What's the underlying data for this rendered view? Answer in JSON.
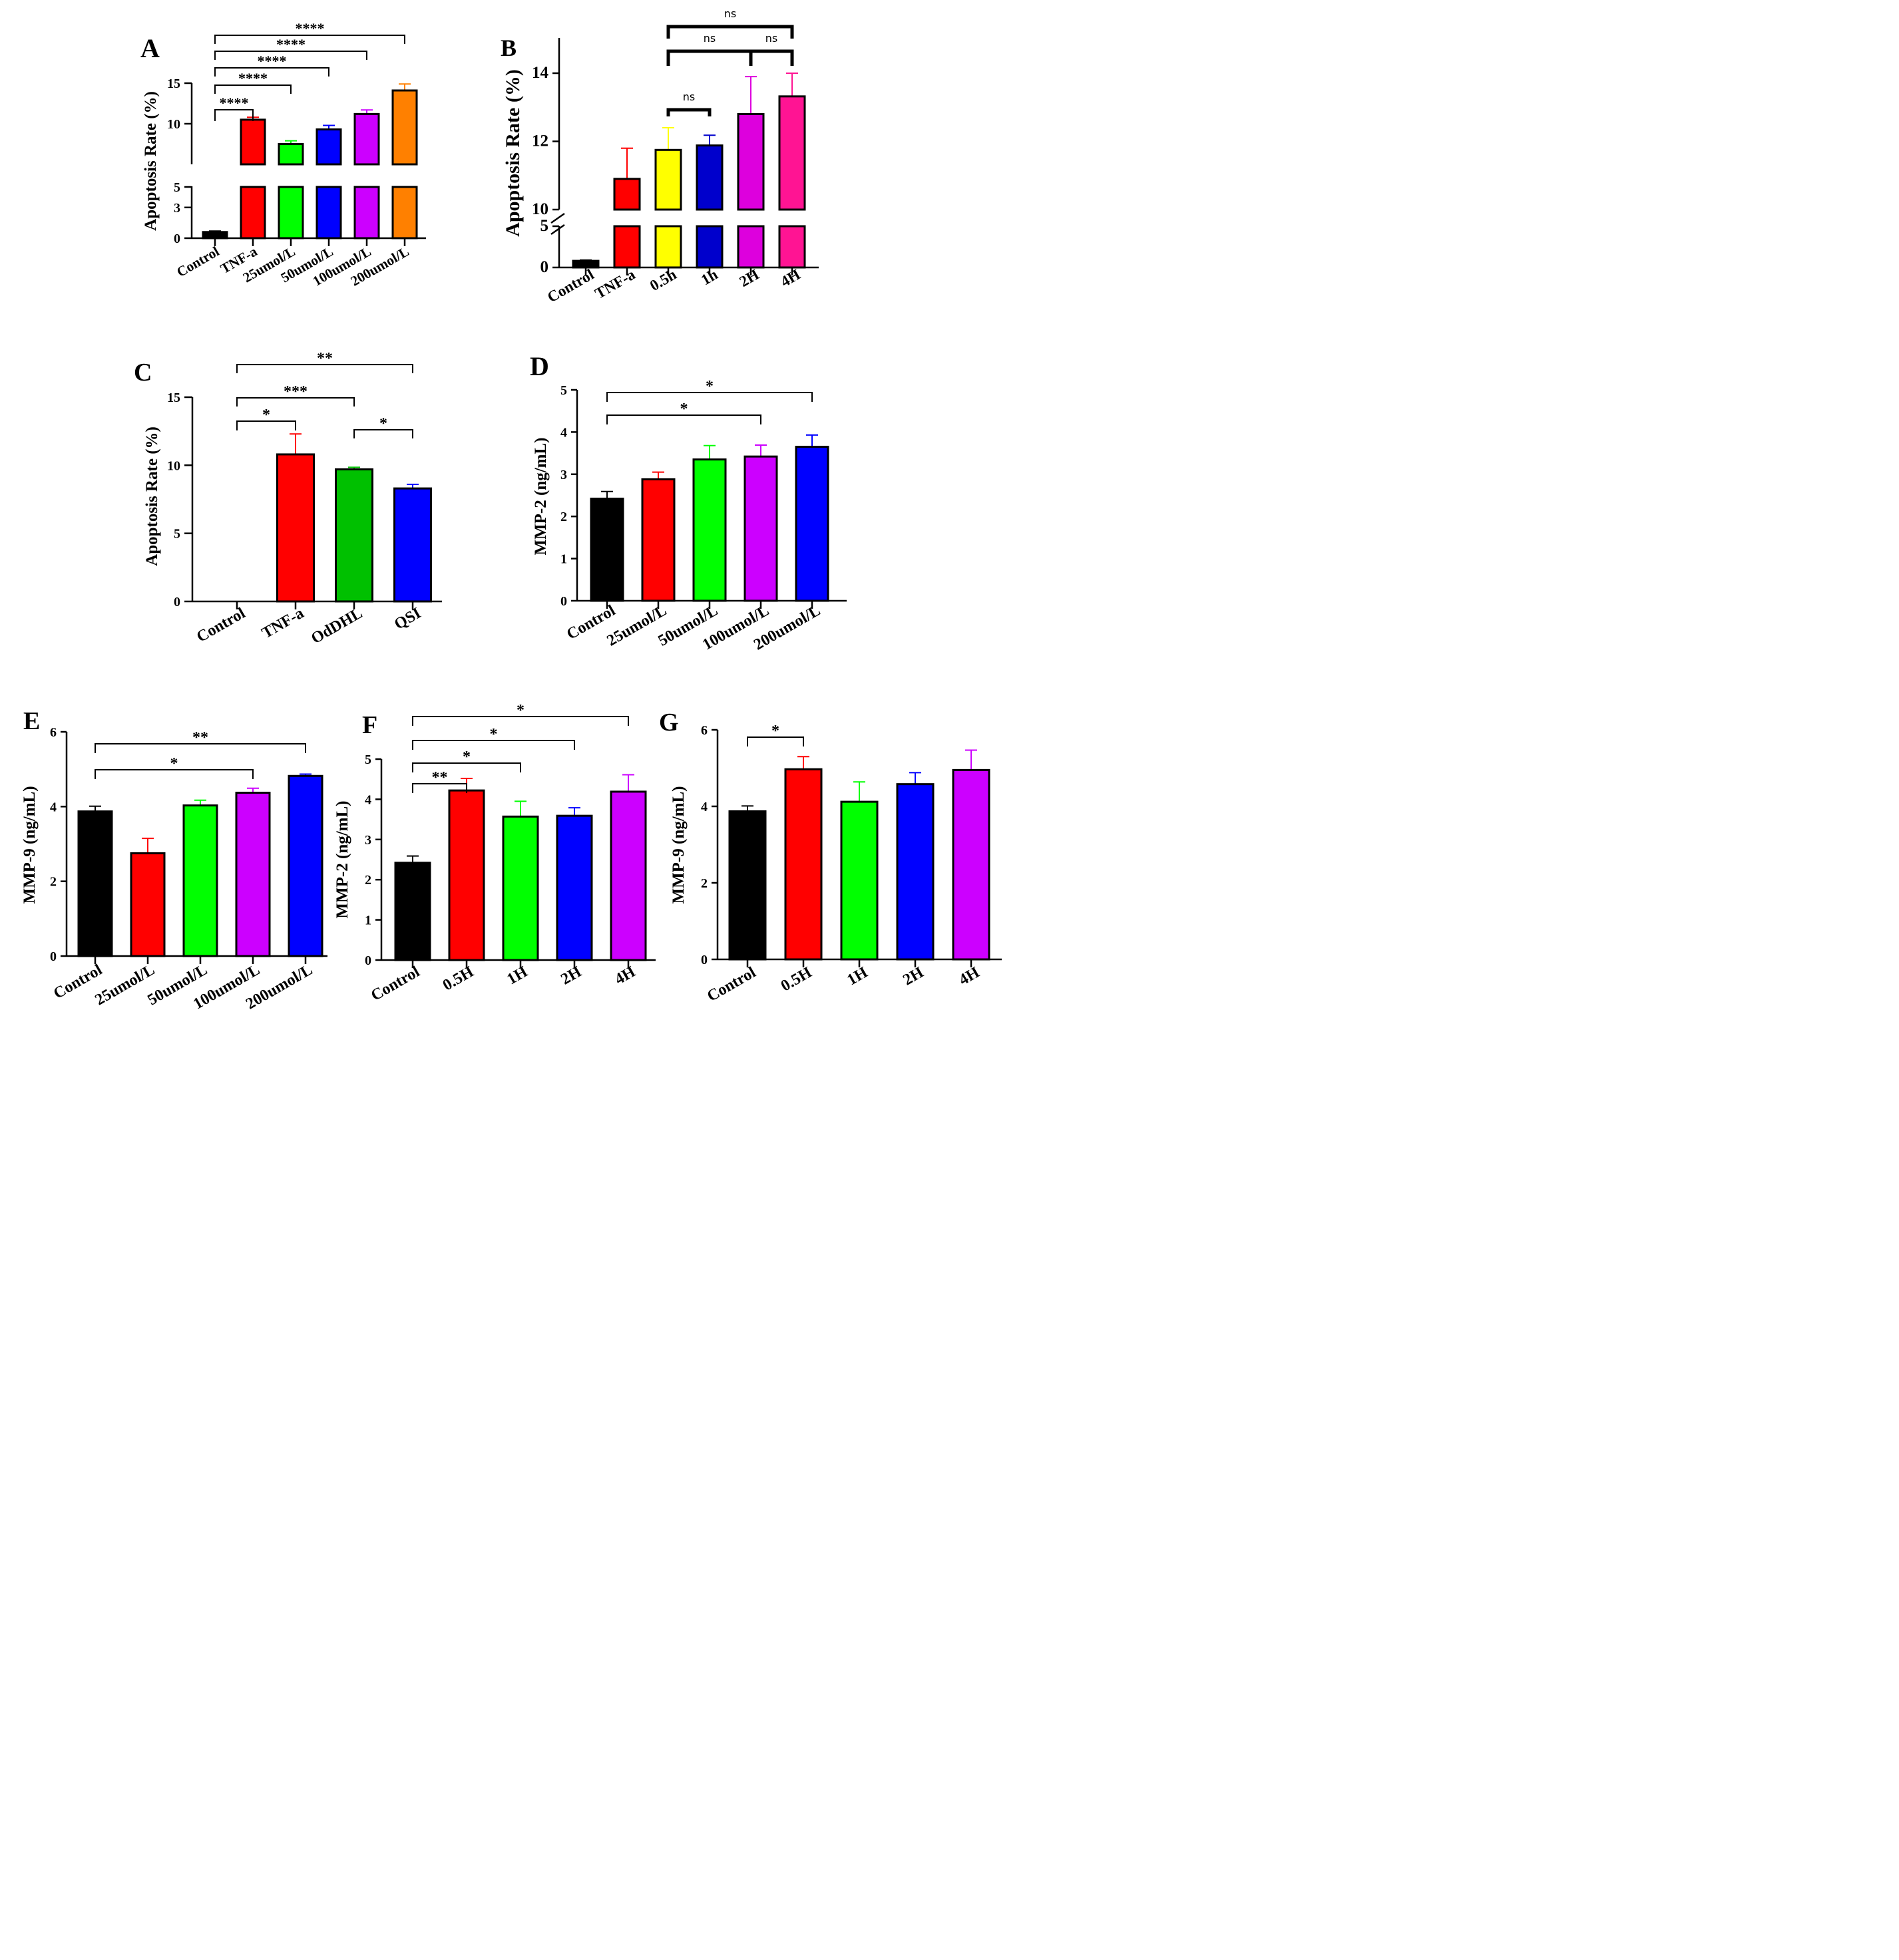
{
  "chart_data": [
    {
      "panel": "A",
      "type": "bar",
      "ylabel": "Apoptosis Rate (%)",
      "categories": [
        "Control",
        "TNF-a",
        "25umol/L",
        "50umol/L",
        "100umol/L",
        "200umol/L"
      ],
      "values": [
        0.6,
        10.5,
        7.5,
        9.3,
        11.2,
        14.1
      ],
      "errors": [
        0.1,
        0.3,
        0.4,
        0.5,
        0.5,
        0.8
      ],
      "colors": [
        "#000000",
        "#ff0000",
        "#00ff00",
        "#0000ff",
        "#cc00ff",
        "#ff8000"
      ],
      "yticks": [
        0,
        3,
        5,
        10,
        15
      ],
      "axis_break": [
        5,
        5
      ],
      "comparisons": [
        {
          "from": 0,
          "to": 1,
          "label": "****"
        },
        {
          "from": 0,
          "to": 2,
          "label": "****"
        },
        {
          "from": 0,
          "to": 3,
          "label": "****"
        },
        {
          "from": 0,
          "to": 4,
          "label": "****"
        },
        {
          "from": 0,
          "to": 5,
          "label": "****"
        }
      ]
    },
    {
      "panel": "B",
      "type": "bar",
      "ylabel": "Apoptosis Rate (%)",
      "categories": [
        "Control",
        "TNF-a",
        "0.5h",
        "1h",
        "2H",
        "4H"
      ],
      "values": [
        0.8,
        10.9,
        11.75,
        11.88,
        12.8,
        13.32
      ],
      "errors": [
        0.1,
        0.9,
        0.65,
        0.3,
        1.1,
        0.88
      ],
      "colors": [
        "#000000",
        "#ff0000",
        "#ffff00",
        "#0000cc",
        "#dd00dd",
        "#ff1493"
      ],
      "yticks": [
        0,
        5,
        10,
        12,
        14
      ],
      "axis_break": [
        5,
        10
      ],
      "comparisons": [
        {
          "from": 2,
          "to": 3,
          "label": "ns"
        },
        {
          "from": 2,
          "to": 4,
          "label": "ns"
        },
        {
          "from": 4,
          "to": 5,
          "label": "ns"
        },
        {
          "from": 2,
          "to": 5,
          "label": "ns"
        }
      ]
    },
    {
      "panel": "C",
      "type": "bar",
      "ylabel": "Apoptosis Rate (%)",
      "categories": [
        "Control",
        "TNF-a",
        "OdDHL",
        "QSI"
      ],
      "values": [
        0,
        10.8,
        9.7,
        8.3
      ],
      "errors": [
        0,
        1.5,
        0.15,
        0.3
      ],
      "colors": [
        "#000000",
        "#ff0000",
        "#00c000",
        "#0000ff"
      ],
      "yticks": [
        0,
        5,
        10,
        15
      ],
      "ylim": [
        0,
        15
      ],
      "comparisons": [
        {
          "from": 0,
          "to": 1,
          "label": "*"
        },
        {
          "from": 0,
          "to": 2,
          "label": "***"
        },
        {
          "from": 2,
          "to": 3,
          "label": "*"
        },
        {
          "from": 0,
          "to": 3,
          "label": "**"
        }
      ]
    },
    {
      "panel": "D",
      "type": "bar",
      "ylabel": "MMP-2 (ng/mL)",
      "categories": [
        "Control",
        "25umol/L",
        "50umol/L",
        "100umol/L",
        "200umol/L"
      ],
      "values": [
        2.42,
        2.88,
        3.35,
        3.42,
        3.65
      ],
      "errors": [
        0.17,
        0.17,
        0.33,
        0.27,
        0.28
      ],
      "colors": [
        "#000000",
        "#ff0000",
        "#00ff00",
        "#cc00ff",
        "#0000ff"
      ],
      "yticks": [
        0,
        1,
        2,
        3,
        4,
        5
      ],
      "ylim": [
        0,
        5
      ],
      "comparisons": [
        {
          "from": 0,
          "to": 3,
          "label": "*"
        },
        {
          "from": 0,
          "to": 4,
          "label": "*"
        }
      ]
    },
    {
      "panel": "E",
      "type": "bar",
      "ylabel": "MMP-9 (ng/mL)",
      "categories": [
        "Control",
        "25umol/L",
        "50umol/L",
        "100umol/L",
        "200umol/L"
      ],
      "values": [
        3.87,
        2.75,
        4.03,
        4.37,
        4.82
      ],
      "errors": [
        0.14,
        0.4,
        0.14,
        0.12,
        0.05
      ],
      "colors": [
        "#000000",
        "#ff0000",
        "#00ff00",
        "#cc00ff",
        "#0000ff"
      ],
      "yticks": [
        0,
        2,
        4,
        6
      ],
      "ylim": [
        0,
        6
      ],
      "comparisons": [
        {
          "from": 0,
          "to": 3,
          "label": "*"
        },
        {
          "from": 0,
          "to": 4,
          "label": "**"
        }
      ]
    },
    {
      "panel": "F",
      "type": "bar",
      "ylabel": "MMP-2 (ng/mL)",
      "categories": [
        "Control",
        "0.5H",
        "1H",
        "2H",
        "4H"
      ],
      "values": [
        2.42,
        4.22,
        3.57,
        3.59,
        4.19
      ],
      "errors": [
        0.17,
        0.3,
        0.38,
        0.2,
        0.42
      ],
      "colors": [
        "#000000",
        "#ff0000",
        "#00ff00",
        "#0000ff",
        "#cc00ff"
      ],
      "yticks": [
        0,
        1,
        2,
        3,
        4,
        5
      ],
      "ylim": [
        0,
        5
      ],
      "comparisons": [
        {
          "from": 0,
          "to": 1,
          "label": "**"
        },
        {
          "from": 0,
          "to": 2,
          "label": "*"
        },
        {
          "from": 0,
          "to": 3,
          "label": "*"
        },
        {
          "from": 0,
          "to": 4,
          "label": "*"
        }
      ]
    },
    {
      "panel": "G",
      "type": "bar",
      "ylabel": "MMP-9 (ng/mL)",
      "categories": [
        "Control",
        "0.5H",
        "1H",
        "2H",
        "4H"
      ],
      "values": [
        3.87,
        4.97,
        4.12,
        4.58,
        4.95
      ],
      "errors": [
        0.14,
        0.33,
        0.52,
        0.3,
        0.52
      ],
      "colors": [
        "#000000",
        "#ff0000",
        "#00ff00",
        "#0000ff",
        "#cc00ff"
      ],
      "yticks": [
        0,
        2,
        4,
        6
      ],
      "ylim": [
        0,
        6
      ],
      "comparisons": [
        {
          "from": 0,
          "to": 1,
          "label": "*"
        }
      ]
    }
  ]
}
